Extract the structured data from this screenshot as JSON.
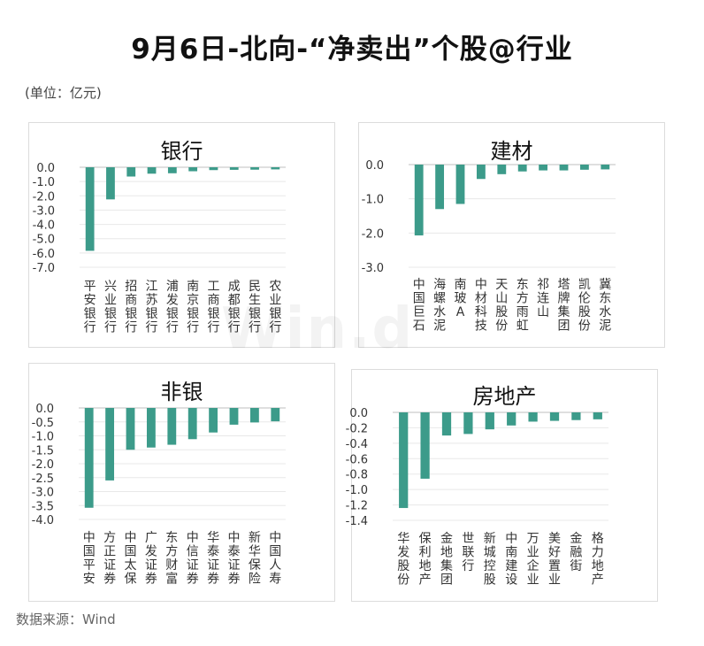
{
  "header": {
    "title": "9月6日-北向-“净卖出”个股@行业",
    "unit": "(单位：亿元)",
    "source": "数据来源：Wind",
    "watermark": "Win.d"
  },
  "colors": {
    "bar": "#3c9b8a",
    "grid": "#e8e8e8",
    "axis": "#bfbfbf"
  },
  "chart_data": [
    {
      "type": "bar",
      "title": "银行",
      "categories": [
        "平安银行",
        "兴业银行",
        "招商银行",
        "江苏银行",
        "浦发银行",
        "南京银行",
        "工商银行",
        "成都银行",
        "民生银行",
        "农业银行"
      ],
      "values": [
        -5.85,
        -2.25,
        -0.65,
        -0.45,
        -0.42,
        -0.28,
        -0.2,
        -0.18,
        -0.17,
        -0.15
      ],
      "ylim": [
        -7.0,
        0.0
      ],
      "yticks": [
        "0.0",
        "-1.0",
        "-2.0",
        "-3.0",
        "-4.0",
        "-5.0",
        "-6.0",
        "-7.0"
      ],
      "grid": true
    },
    {
      "type": "bar",
      "title": "建材",
      "categories": [
        "中国巨石",
        "海螺水泥",
        "南玻A",
        "中材科技",
        "天山股份",
        "东方雨虹",
        "祁连山",
        "塔牌集团",
        "凯伦股份",
        "冀东水泥"
      ],
      "values": [
        -2.07,
        -1.3,
        -1.15,
        -0.42,
        -0.28,
        -0.2,
        -0.17,
        -0.17,
        -0.15,
        -0.14
      ],
      "ylim": [
        -3.0,
        0.0
      ],
      "yticks": [
        "0.0",
        "-1.0",
        "-2.0",
        "-3.0"
      ],
      "grid": true
    },
    {
      "type": "bar",
      "title": "非银",
      "categories": [
        "中国平安",
        "方正证券",
        "中国太保",
        "广发证券",
        "东方财富",
        "中信证券",
        "华泰证券",
        "中泰证券",
        "新华保险",
        "中国人寿"
      ],
      "values": [
        -3.58,
        -2.6,
        -1.5,
        -1.42,
        -1.32,
        -1.12,
        -0.88,
        -0.6,
        -0.52,
        -0.48
      ],
      "ylim": [
        -4.0,
        0.0
      ],
      "yticks": [
        "0.0",
        "-0.5",
        "-1.0",
        "-1.5",
        "-2.0",
        "-2.5",
        "-3.0",
        "-3.5",
        "-4.0"
      ],
      "grid": true
    },
    {
      "type": "bar",
      "title": "房地产",
      "categories": [
        "华发股份",
        "保利地产",
        "金地集团",
        "世联行",
        "新城控股",
        "中南建设",
        "万业企业",
        "美好置业",
        "金融街",
        "格力地产"
      ],
      "values": [
        -1.24,
        -0.86,
        -0.3,
        -0.28,
        -0.22,
        -0.17,
        -0.12,
        -0.11,
        -0.1,
        -0.09
      ],
      "ylim": [
        -1.4,
        0.0
      ],
      "yticks": [
        "0.0",
        "-0.2",
        "-0.4",
        "-0.6",
        "-0.8",
        "-1.0",
        "-1.2",
        "-1.4"
      ],
      "grid": true
    }
  ]
}
